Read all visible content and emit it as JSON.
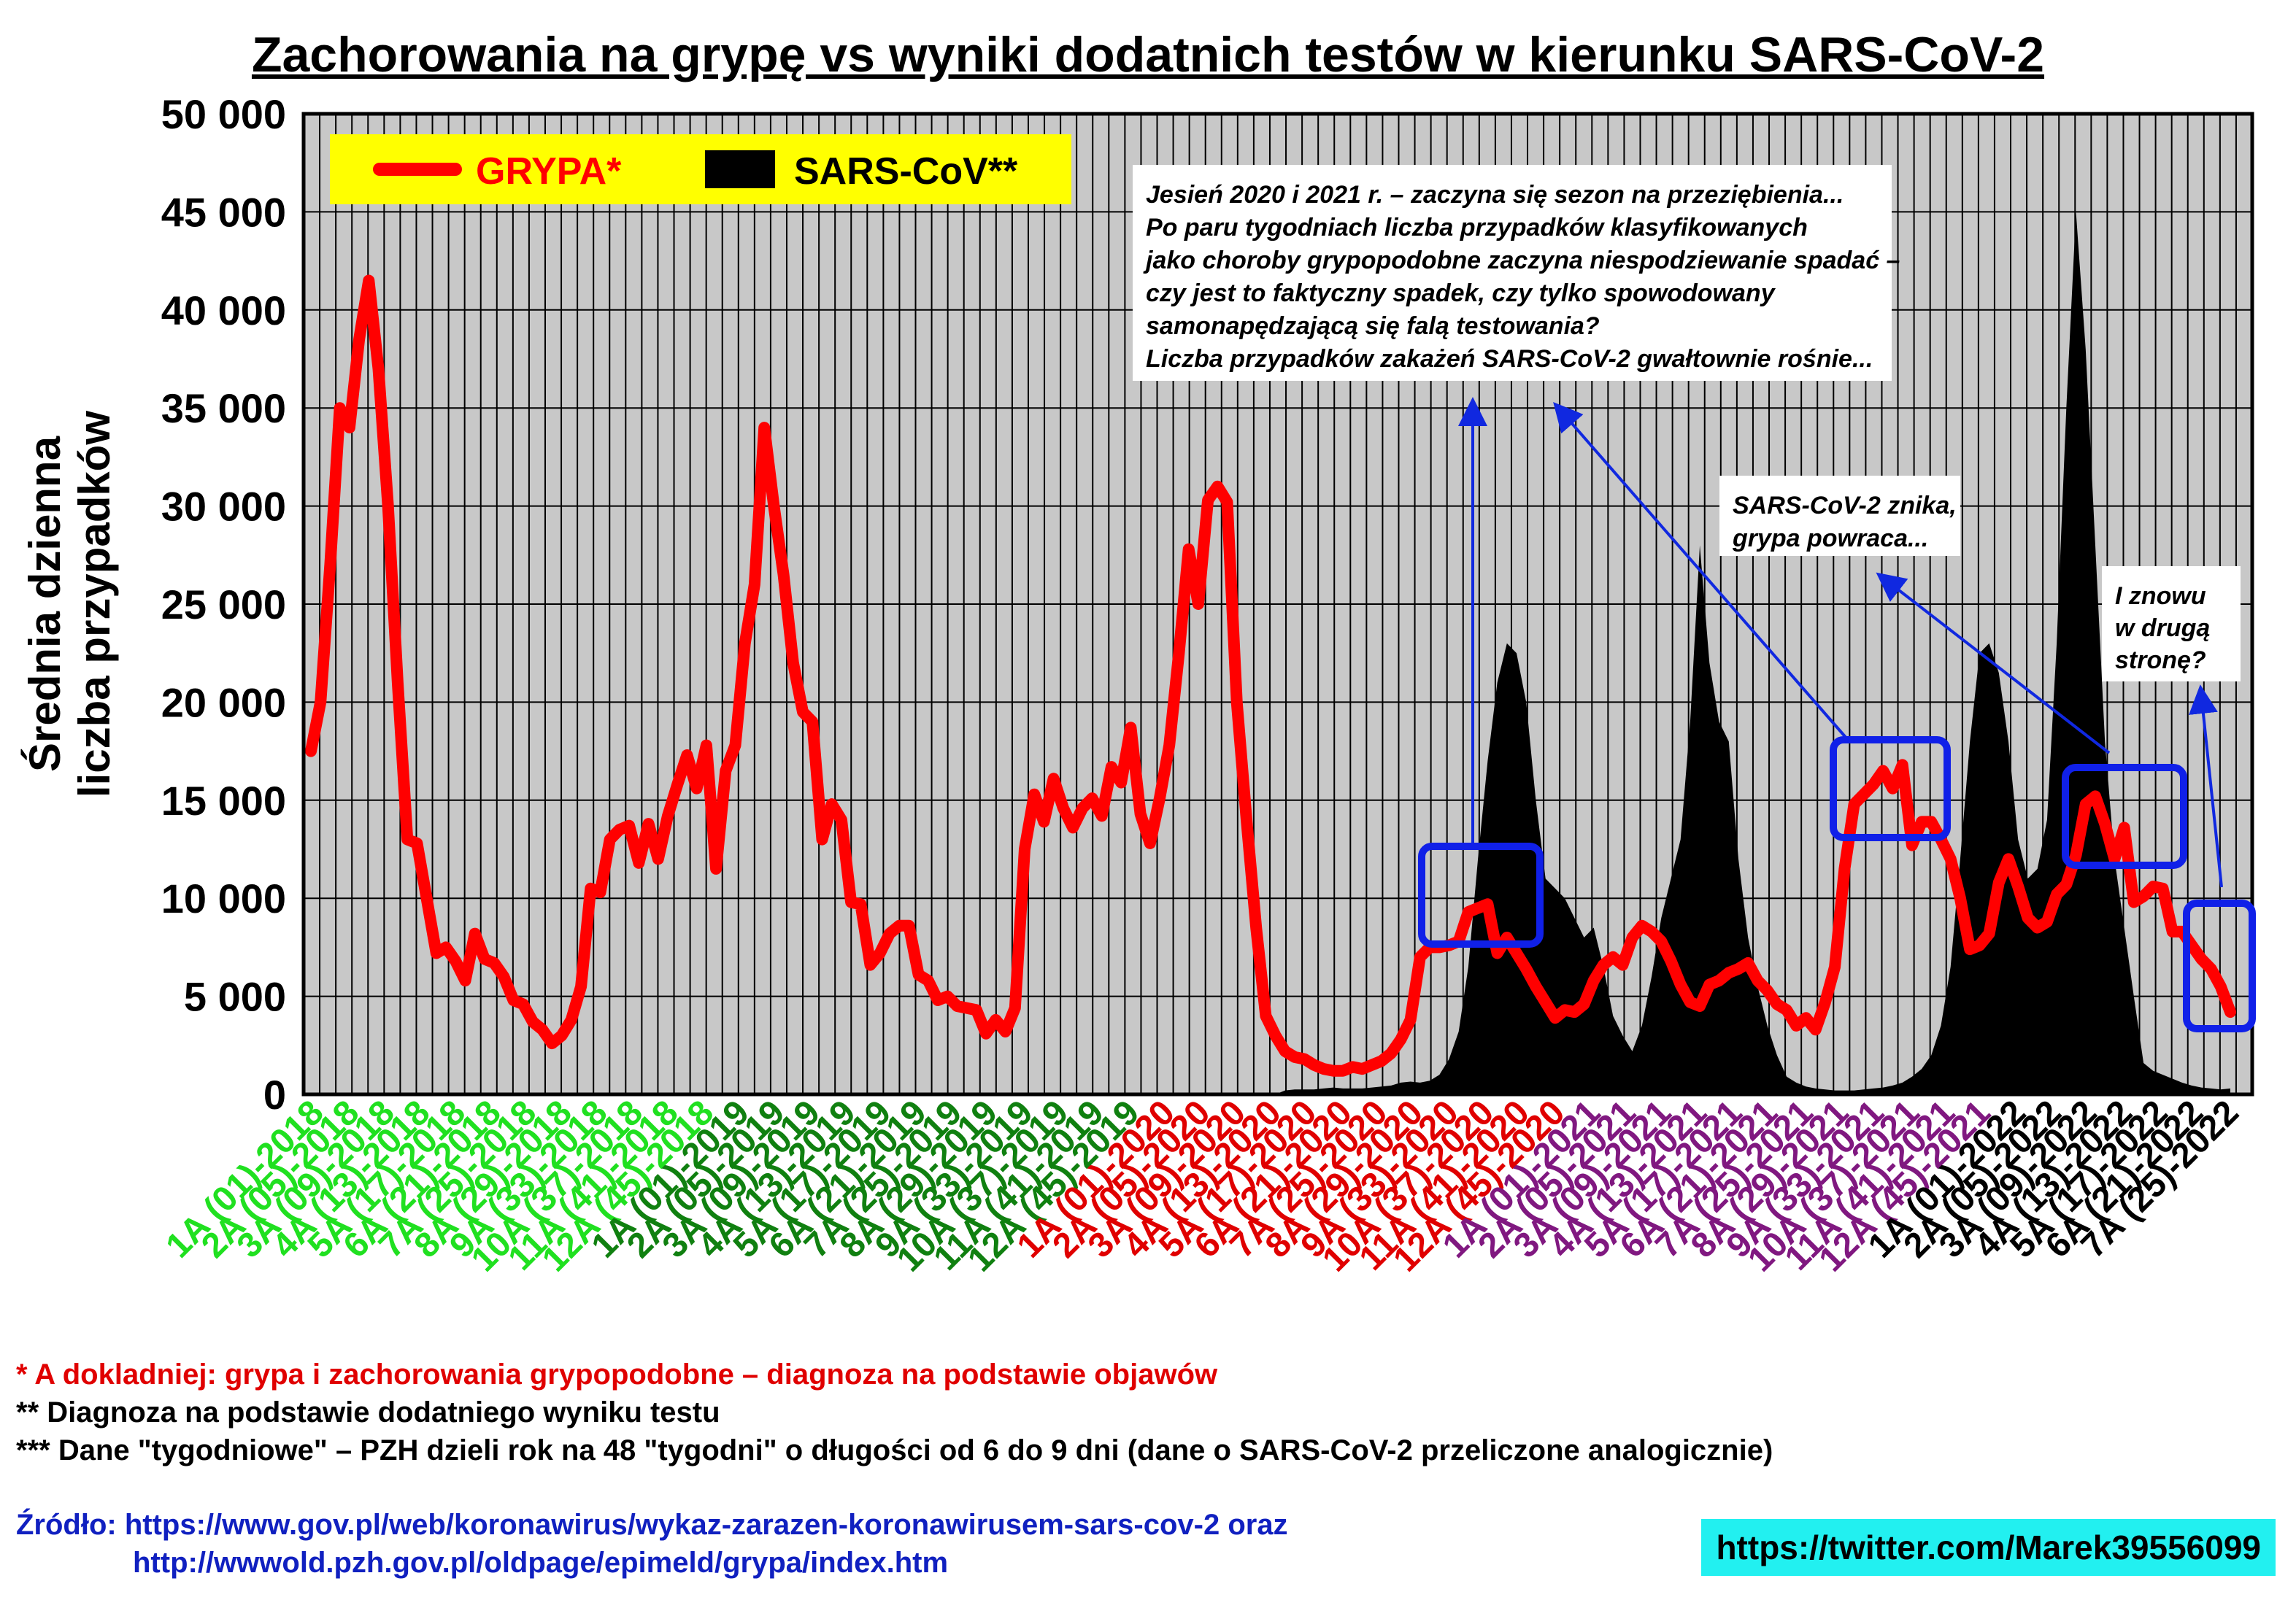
{
  "title": "Zachorowania na grypę vs wyniki dodatnich testów w kierunku SARS-CoV-2",
  "footer": {
    "note1": "* A dokladniej: grypa i zachorowania grypopodobne – diagnoza na podstawie objawów",
    "note2": "** Diagnoza na podstawie dodatniego wyniku testu",
    "note3": "*** Dane \"tygodniowe\" – PZH dzieli rok na 48 \"tygodni\" o długości od 6 do 9 dni (dane o SARS-CoV-2 przeliczone analogicznie)",
    "source_line1": "Źródło: https://www.gov.pl/web/koronawirus/wykaz-zarazen-koronawirusem-sars-cov-2 oraz",
    "source_line2": "http://wwwold.pzh.gov.pl/oldpage/epimeld/grypa/index.htm",
    "twitter": "https://twitter.com/Marek39556099"
  },
  "colors": {
    "flu": "#ff0000",
    "sars": "#000000",
    "plot_bg": "#c8c8c8",
    "legend_bg": "#ffff00",
    "annotation": "#1028e0",
    "label_2018": "#20e020",
    "label_2019": "#108010",
    "label_2020": "#e00000",
    "label_2021": "#801880",
    "label_2022": "#000000"
  },
  "chart_data": {
    "type": "line",
    "ylabel": [
      "Średnia dzienna",
      "liczba przypadków"
    ],
    "yticks": [
      "50 000",
      "45 000",
      "40 000",
      "35 000",
      "30 000",
      "25 000",
      "20 000",
      "15 000",
      "10 000",
      "5 000",
      "0"
    ],
    "ylim": [
      0,
      50000
    ],
    "grid": true,
    "legend": {
      "placement": "top-left",
      "entries": [
        "GRYPA*",
        "SARS-CoV**"
      ]
    },
    "x_labels": [
      {
        "text": "1A (01)-2018",
        "year": "2018"
      },
      {
        "text": "2A (05)-2018",
        "year": "2018"
      },
      {
        "text": "3A (09)-2018",
        "year": "2018"
      },
      {
        "text": "4A (13)-2018",
        "year": "2018"
      },
      {
        "text": "5A (17)-2018",
        "year": "2018"
      },
      {
        "text": "6A (21)-2018",
        "year": "2018"
      },
      {
        "text": "7A (25)-2018",
        "year": "2018"
      },
      {
        "text": "8A (29)-2018",
        "year": "2018"
      },
      {
        "text": "9A (33)-2018",
        "year": "2018"
      },
      {
        "text": "10A (37)-2018",
        "year": "2018"
      },
      {
        "text": "11A (41)-2018",
        "year": "2018"
      },
      {
        "text": "12A (45)-2018",
        "year": "2018"
      },
      {
        "text": "1A (01)-2019",
        "year": "2019"
      },
      {
        "text": "2A (05)-2019",
        "year": "2019"
      },
      {
        "text": "3A (09)-2019",
        "year": "2019"
      },
      {
        "text": "4A (13)-2019",
        "year": "2019"
      },
      {
        "text": "5A (17)-2019",
        "year": "2019"
      },
      {
        "text": "6A (21)-2019",
        "year": "2019"
      },
      {
        "text": "7A (25)-2019",
        "year": "2019"
      },
      {
        "text": "8A (29)-2019",
        "year": "2019"
      },
      {
        "text": "9A (33)-2019",
        "year": "2019"
      },
      {
        "text": "10A (37)-2019",
        "year": "2019"
      },
      {
        "text": "11A (41)-2019",
        "year": "2019"
      },
      {
        "text": "12A (45)-2019",
        "year": "2019"
      },
      {
        "text": "1A (01)-2020",
        "year": "2020"
      },
      {
        "text": "2A (05)-2020",
        "year": "2020"
      },
      {
        "text": "3A (09)-2020",
        "year": "2020"
      },
      {
        "text": "4A (13)-2020",
        "year": "2020"
      },
      {
        "text": "5A (17)-2020",
        "year": "2020"
      },
      {
        "text": "6A (21)-2020",
        "year": "2020"
      },
      {
        "text": "7A (25)-2020",
        "year": "2020"
      },
      {
        "text": "8A (29)-2020",
        "year": "2020"
      },
      {
        "text": "9A (33)-2020",
        "year": "2020"
      },
      {
        "text": "10A (37)-2020",
        "year": "2020"
      },
      {
        "text": "11A (41)-2020",
        "year": "2020"
      },
      {
        "text": "12A (45)-2020",
        "year": "2020"
      },
      {
        "text": "1A (01)-2021",
        "year": "2021"
      },
      {
        "text": "2A (05)-2021",
        "year": "2021"
      },
      {
        "text": "3A (09)-2021",
        "year": "2021"
      },
      {
        "text": "4A (13)-2021",
        "year": "2021"
      },
      {
        "text": "5A (17)-2021",
        "year": "2021"
      },
      {
        "text": "6A (21)-2021",
        "year": "2021"
      },
      {
        "text": "7A (25)-2021",
        "year": "2021"
      },
      {
        "text": "8A (29)-2021",
        "year": "2021"
      },
      {
        "text": "9A (33)-2021",
        "year": "2021"
      },
      {
        "text": "10A (37)-2021",
        "year": "2021"
      },
      {
        "text": "11A (41)-2021",
        "year": "2021"
      },
      {
        "text": "12A (45)-2021",
        "year": "2021"
      },
      {
        "text": "1A (01)-2022",
        "year": "2022"
      },
      {
        "text": "2A (05)-2022",
        "year": "2022"
      },
      {
        "text": "3A (09)-2022",
        "year": "2022"
      },
      {
        "text": "4A (13)-2022",
        "year": "2022"
      },
      {
        "text": "5A (17)-2022",
        "year": "2022"
      },
      {
        "text": "6A (21)-2022",
        "year": "2022"
      },
      {
        "text": "7A (25)-2022",
        "year": "2022"
      }
    ],
    "series": [
      {
        "name": "GRYPA*",
        "type": "line",
        "values": [
          17500,
          20000,
          27000,
          35000,
          34000,
          38500,
          41500,
          37000,
          30000,
          21000,
          13000,
          12800,
          10000,
          7200,
          7500,
          6800,
          5800,
          8200,
          6900,
          6700,
          6000,
          4800,
          4600,
          3700,
          3300,
          2600,
          3000,
          3800,
          5500,
          10500,
          10300,
          13000,
          13500,
          13700,
          11800,
          13800,
          12000,
          14200,
          15800,
          17300,
          15600,
          17800,
          11500,
          16500,
          17800,
          23000,
          26000,
          34000,
          30000,
          26500,
          22000,
          19500,
          19000,
          13000,
          14800,
          14000,
          9800,
          9700,
          6600,
          7200,
          8200,
          8600,
          8600,
          6100,
          5800,
          4800,
          5000,
          4500,
          4400,
          4300,
          3100,
          3800,
          3200,
          4400,
          12500,
          15300,
          13900,
          16100,
          14600,
          13600,
          14600,
          15100,
          14200,
          16700,
          15900,
          18700,
          14300,
          12800,
          15100,
          17800,
          22500,
          27800,
          25000,
          30300,
          31000,
          30200,
          20000,
          14000,
          8500,
          4000,
          3000,
          2200,
          1900,
          1800,
          1500,
          1300,
          1200,
          1200,
          1400,
          1300,
          1500,
          1700,
          2100,
          2800,
          3800,
          7000,
          7500,
          7500,
          7600,
          7800,
          9300,
          9500,
          9700,
          7200,
          8000,
          7200,
          6400,
          5500,
          4700,
          3900,
          4300,
          4200,
          4600,
          5800,
          6600,
          7000,
          6600,
          8000,
          8600,
          8300,
          7800,
          6800,
          5600,
          4700,
          4500,
          5600,
          5800,
          6200,
          6400,
          6700,
          5800,
          5300,
          4600,
          4300,
          3500,
          3900,
          3300,
          4700,
          6500,
          11500,
          14800,
          15300,
          15800,
          16500,
          15600,
          16800,
          12700,
          13900,
          13900,
          13000,
          12000,
          10000,
          7400,
          7600,
          8200,
          10800,
          12000,
          10600,
          9000,
          8500,
          8800,
          10200,
          10700,
          12200,
          14800,
          15200,
          13800,
          12000,
          13600,
          9800,
          10100,
          10600,
          10500,
          8300,
          8300,
          7600,
          6900,
          6400,
          5500,
          4200
        ]
      },
      {
        "name": "SARS-CoV**",
        "type": "area",
        "values": [
          0,
          0,
          0,
          0,
          0,
          0,
          0,
          0,
          0,
          0,
          0,
          0,
          0,
          0,
          0,
          0,
          0,
          0,
          0,
          0,
          0,
          0,
          0,
          0,
          0,
          0,
          0,
          0,
          0,
          0,
          0,
          0,
          0,
          0,
          0,
          0,
          0,
          0,
          0,
          0,
          0,
          0,
          0,
          0,
          0,
          0,
          0,
          0,
          0,
          0,
          0,
          0,
          0,
          0,
          0,
          0,
          0,
          0,
          0,
          0,
          0,
          0,
          0,
          0,
          0,
          0,
          0,
          0,
          0,
          0,
          0,
          0,
          0,
          0,
          0,
          0,
          0,
          0,
          0,
          0,
          0,
          0,
          0,
          0,
          0,
          0,
          0,
          0,
          0,
          0,
          0,
          0,
          0,
          0,
          0,
          0,
          0,
          0,
          0,
          0,
          0,
          200,
          250,
          250,
          250,
          300,
          350,
          300,
          300,
          300,
          350,
          400,
          450,
          600,
          650,
          600,
          700,
          1000,
          1800,
          3200,
          6500,
          12000,
          17000,
          21000,
          23000,
          22500,
          20000,
          15000,
          11000,
          10500,
          10000,
          9000,
          8000,
          8500,
          6500,
          4000,
          3000,
          2200,
          3500,
          6000,
          9000,
          11000,
          13000,
          19000,
          28000,
          22000,
          19000,
          18000,
          12000,
          8000,
          5500,
          3500,
          2000,
          900,
          600,
          400,
          300,
          250,
          200,
          200,
          200,
          250,
          300,
          350,
          450,
          600,
          900,
          1300,
          2000,
          3500,
          6500,
          12000,
          18000,
          22500,
          23000,
          21500,
          18000,
          13000,
          11000,
          11500,
          14000,
          23000,
          35000,
          45000,
          38000,
          28000,
          18000,
          12000,
          8500,
          5000,
          1600,
          1200,
          1000,
          800,
          600,
          450,
          350,
          300,
          250,
          300,
          500,
          1000,
          2000,
          2500
        ]
      }
    ],
    "annotations": [
      {
        "text": "Jesień 2020 i 2021 r. – zaczyna się sezon na przeziębienia...\nPo paru tygodniach liczba przypadków klasyfikowanych\njako choroby grypopodobne zaczyna niespodziewanie spadać –\nczy jest to faktyczny spadek, czy tylko spowodowany\nsamonapędzającą się falą testowania?\nLiczba przypadków zakażeń SARS-CoV-2 gwałtownie rośnie..."
      },
      {
        "text": "SARS-CoV-2 znika,\ngrypa powraca..."
      },
      {
        "text": "I znowu\nw drugą\nstronę?"
      }
    ]
  }
}
